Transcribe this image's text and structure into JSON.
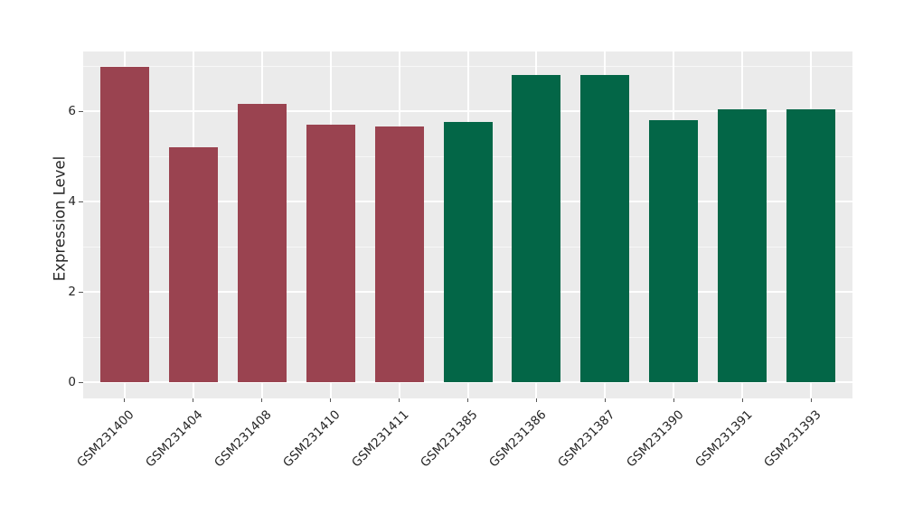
{
  "chart_data": {
    "type": "bar",
    "title": "",
    "ylabel": "Expression Level",
    "xlabel": "",
    "categories": [
      "GSM231400",
      "GSM231404",
      "GSM231408",
      "GSM231410",
      "GSM231411",
      "GSM231385",
      "GSM231386",
      "GSM231387",
      "GSM231390",
      "GSM231391",
      "GSM231393"
    ],
    "values": [
      6.98,
      5.2,
      6.16,
      5.7,
      5.66,
      5.76,
      6.8,
      6.8,
      5.8,
      6.05,
      6.05
    ],
    "bar_colors": [
      "#9A4350",
      "#9A4350",
      "#9A4350",
      "#9A4350",
      "#9A4350",
      "#036647",
      "#036647",
      "#036647",
      "#036647",
      "#036647",
      "#036647"
    ],
    "yticks": [
      0,
      2,
      4,
      6
    ],
    "minor_yticks": [
      1,
      3,
      5,
      7
    ],
    "ylim": [
      -0.36,
      7.32
    ],
    "grid": true,
    "legend": "none",
    "colors": {
      "group_left": "#9A4350",
      "group_right": "#036647",
      "panel_background": "#EBEBEB",
      "gridline": "#FFFFFF",
      "tick_mark": "#555555",
      "text": "#262626",
      "figure_background": "#FFFFFF"
    }
  }
}
